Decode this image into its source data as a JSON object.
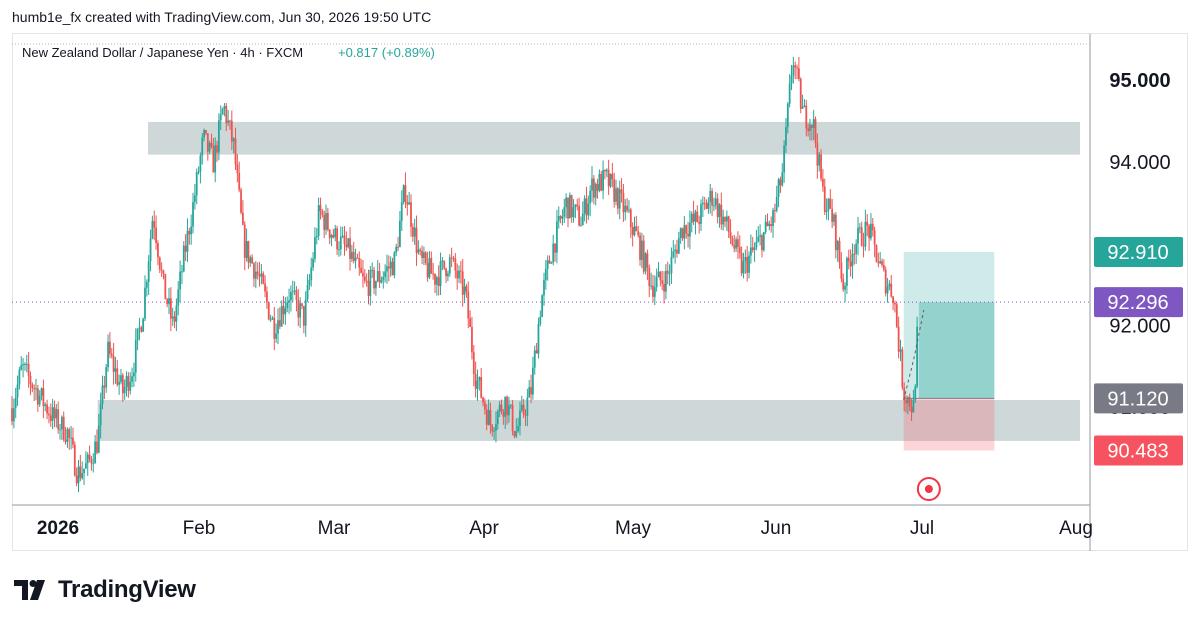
{
  "header": {
    "text": "humb1e_fx created with TradingView.com, Jun 30, 2026 19:50 UTC"
  },
  "legend": {
    "symbol": "New Zealand Dollar / Japanese Yen · 4h · FXCM",
    "change": "+0.817 (+0.89%)"
  },
  "footer": {
    "logo_text": "TradingView"
  },
  "colors": {
    "up": "#26a69a",
    "down": "#ef5350",
    "zone": "#cfd8d9",
    "target": "#26a69a",
    "stop": "#f7525f",
    "price_badge": "#7e57c2",
    "entry_badge": "#787b86"
  },
  "chart_data": {
    "type": "candlestick",
    "symbol": "NZDJPY",
    "timeframe": "4h",
    "x_labels": [
      "2026",
      "Feb",
      "Mar",
      "Apr",
      "May",
      "Jun",
      "Jul",
      "Aug"
    ],
    "y_tick_labels": [
      "95.000",
      "94.000",
      "92.000",
      "91.000"
    ],
    "ylim": [
      89.9,
      95.4
    ],
    "last_price": 92.296,
    "price_path": [
      [
        "2026-01-01",
        91.0
      ],
      [
        "2026-01-03",
        91.5
      ],
      [
        "2026-01-06",
        91.2
      ],
      [
        "2026-01-09",
        90.9
      ],
      [
        "2026-01-12",
        90.7
      ],
      [
        "2026-01-14",
        90.2
      ],
      [
        "2026-01-16",
        90.3
      ],
      [
        "2026-01-18",
        90.6
      ],
      [
        "2026-01-20",
        91.7
      ],
      [
        "2026-01-23",
        91.2
      ],
      [
        "2026-01-25",
        91.5
      ],
      [
        "2026-01-27",
        92.2
      ],
      [
        "2026-01-29",
        93.4
      ],
      [
        "2026-01-31",
        92.5
      ],
      [
        "2026-02-02",
        92.0
      ],
      [
        "2026-02-04",
        92.8
      ],
      [
        "2026-02-06",
        93.5
      ],
      [
        "2026-02-08",
        94.3
      ],
      [
        "2026-02-10",
        94.0
      ],
      [
        "2026-02-12",
        94.7
      ],
      [
        "2026-02-14",
        94.2
      ],
      [
        "2026-02-16",
        93.0
      ],
      [
        "2026-02-19",
        92.6
      ],
      [
        "2026-02-22",
        92.0
      ],
      [
        "2026-02-25",
        92.4
      ],
      [
        "2026-02-28",
        92.1
      ],
      [
        "2026-03-03",
        93.4
      ],
      [
        "2026-03-06",
        93.1
      ],
      [
        "2026-03-09",
        92.9
      ],
      [
        "2026-03-12",
        92.5
      ],
      [
        "2026-03-15",
        92.6
      ],
      [
        "2026-03-18",
        92.8
      ],
      [
        "2026-03-20",
        93.7
      ],
      [
        "2026-03-23",
        92.8
      ],
      [
        "2026-03-26",
        92.6
      ],
      [
        "2026-03-29",
        92.8
      ],
      [
        "2026-04-01",
        92.4
      ],
      [
        "2026-04-03",
        91.4
      ],
      [
        "2026-04-06",
        90.8
      ],
      [
        "2026-04-09",
        91.1
      ],
      [
        "2026-04-11",
        90.7
      ],
      [
        "2026-04-14",
        91.2
      ],
      [
        "2026-04-16",
        92.3
      ],
      [
        "2026-04-18",
        92.9
      ],
      [
        "2026-04-21",
        93.5
      ],
      [
        "2026-04-24",
        93.3
      ],
      [
        "2026-04-26",
        93.7
      ],
      [
        "2026-04-29",
        93.8
      ],
      [
        "2026-05-02",
        93.5
      ],
      [
        "2026-05-05",
        93.1
      ],
      [
        "2026-05-08",
        92.5
      ],
      [
        "2026-05-11",
        92.6
      ],
      [
        "2026-05-14",
        93.2
      ],
      [
        "2026-05-17",
        93.3
      ],
      [
        "2026-05-20",
        93.6
      ],
      [
        "2026-05-23",
        93.2
      ],
      [
        "2026-05-26",
        92.7
      ],
      [
        "2026-05-29",
        93.0
      ],
      [
        "2026-06-01",
        93.3
      ],
      [
        "2026-06-03",
        93.9
      ],
      [
        "2026-06-05",
        95.3
      ],
      [
        "2026-06-07",
        94.6
      ],
      [
        "2026-06-09",
        94.5
      ],
      [
        "2026-06-11",
        93.6
      ],
      [
        "2026-06-13",
        93.3
      ],
      [
        "2026-06-15",
        92.5
      ],
      [
        "2026-06-17",
        93.0
      ],
      [
        "2026-06-20",
        93.2
      ],
      [
        "2026-06-23",
        92.6
      ],
      [
        "2026-06-25",
        92.4
      ],
      [
        "2026-06-27",
        91.2
      ],
      [
        "2026-06-29",
        91.0
      ],
      [
        "2026-06-30",
        92.3
      ]
    ],
    "zones": [
      {
        "name": "resistance",
        "from": "2026-01-28",
        "to": "2026-08-01",
        "low": 94.1,
        "high": 94.5
      },
      {
        "name": "support",
        "from": "2026-01-18",
        "to": "2026-08-01",
        "low": 90.6,
        "high": 91.1
      }
    ],
    "long_position": {
      "from": "2026-06-27",
      "to": "2026-07-15",
      "entry": 91.12,
      "target": 92.91,
      "stop": 90.483,
      "entry_label": "91.120",
      "target_label": "92.910",
      "stop_label": "90.483",
      "price_label": "92.296"
    }
  }
}
